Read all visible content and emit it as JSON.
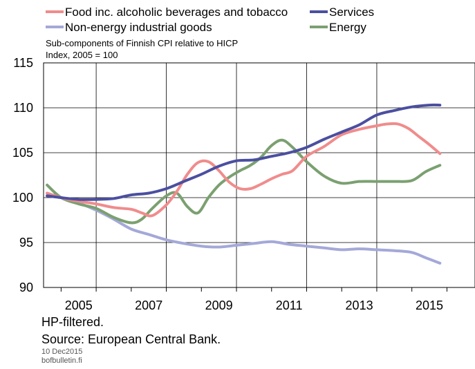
{
  "chart_data": {
    "type": "line",
    "subtitle": "Sub-components of Finnish CPI relative to HICP",
    "ylabel": "Index, 2005 = 100",
    "ylim": [
      90,
      115
    ],
    "yticks": [
      "115",
      "110",
      "105",
      "100",
      "95",
      "90"
    ],
    "xlim": [
      2004.5,
      2016.8
    ],
    "xtick_labels": [
      "2005",
      "2007",
      "2009",
      "2011",
      "2013",
      "2015"
    ],
    "grid": true,
    "legend_position": "top",
    "series": [
      {
        "name": "Food inc. alcoholic beverages and tobacco",
        "color": "#f08c8c",
        "x": [
          2004.6,
          2005.0,
          2005.5,
          2006.0,
          2006.5,
          2007.0,
          2007.3,
          2007.6,
          2008.0,
          2008.3,
          2008.6,
          2008.9,
          2009.2,
          2009.5,
          2009.8,
          2010.1,
          2010.4,
          2010.7,
          2011.0,
          2011.3,
          2011.6,
          2012.0,
          2012.5,
          2013.0,
          2013.5,
          2014.0,
          2014.3,
          2014.6,
          2014.9,
          2015.2,
          2015.5,
          2015.8
        ],
        "y": [
          100.5,
          100.0,
          99.6,
          99.3,
          98.9,
          98.7,
          98.3,
          98.0,
          99.2,
          100.7,
          102.6,
          103.9,
          104.0,
          103.0,
          101.7,
          101.0,
          101.0,
          101.5,
          102.1,
          102.6,
          103.0,
          104.6,
          105.7,
          107.0,
          107.6,
          108.0,
          108.2,
          108.2,
          107.7,
          106.8,
          105.9,
          104.9
        ]
      },
      {
        "name": "Services",
        "color": "#4b4fa0",
        "x": [
          2004.6,
          2005.0,
          2005.5,
          2006.0,
          2006.5,
          2007.0,
          2007.5,
          2008.0,
          2008.5,
          2009.0,
          2009.5,
          2010.0,
          2010.5,
          2011.0,
          2011.5,
          2012.0,
          2012.5,
          2013.0,
          2013.5,
          2014.0,
          2014.5,
          2015.0,
          2015.5,
          2015.8
        ],
        "y": [
          100.2,
          100.0,
          99.8,
          99.8,
          99.9,
          100.3,
          100.5,
          101.0,
          101.8,
          102.6,
          103.5,
          104.1,
          104.2,
          104.6,
          105.0,
          105.6,
          106.5,
          107.3,
          108.1,
          109.2,
          109.7,
          110.1,
          110.3,
          110.3
        ]
      },
      {
        "name": "Non-energy industrial goods",
        "color": "#a4a8d8",
        "x": [
          2004.6,
          2005.0,
          2005.5,
          2006.0,
          2006.5,
          2007.0,
          2007.5,
          2008.0,
          2008.5,
          2009.0,
          2009.5,
          2010.0,
          2010.5,
          2011.0,
          2011.5,
          2012.0,
          2012.5,
          2013.0,
          2013.5,
          2014.0,
          2014.5,
          2015.0,
          2015.4,
          2015.8
        ],
        "y": [
          100.5,
          100.0,
          99.4,
          98.6,
          97.6,
          96.5,
          95.9,
          95.3,
          94.9,
          94.6,
          94.5,
          94.7,
          94.9,
          95.1,
          94.8,
          94.6,
          94.4,
          94.2,
          94.3,
          94.2,
          94.1,
          93.9,
          93.3,
          92.7
        ]
      },
      {
        "name": "Energy",
        "color": "#7ba070",
        "x": [
          2004.6,
          2005.0,
          2005.5,
          2006.0,
          2006.5,
          2007.0,
          2007.3,
          2007.6,
          2008.0,
          2008.3,
          2008.6,
          2008.9,
          2009.2,
          2009.5,
          2009.8,
          2010.1,
          2010.4,
          2010.7,
          2011.0,
          2011.3,
          2011.6,
          2012.0,
          2012.5,
          2013.0,
          2013.5,
          2014.0,
          2014.5,
          2015.0,
          2015.4,
          2015.8
        ],
        "y": [
          101.4,
          100.0,
          99.3,
          98.8,
          97.8,
          97.2,
          97.6,
          98.8,
          100.2,
          100.5,
          99.0,
          98.3,
          100.0,
          101.4,
          102.3,
          103.0,
          103.6,
          104.5,
          105.8,
          106.4,
          105.6,
          104.0,
          102.4,
          101.6,
          101.8,
          101.8,
          101.8,
          101.9,
          102.9,
          103.6
        ]
      }
    ]
  },
  "footer": {
    "note": "HP-filtered.",
    "source": "Source: European Central Bank.",
    "date": "10 Dec2015",
    "site": "bofbulletin.fi"
  }
}
